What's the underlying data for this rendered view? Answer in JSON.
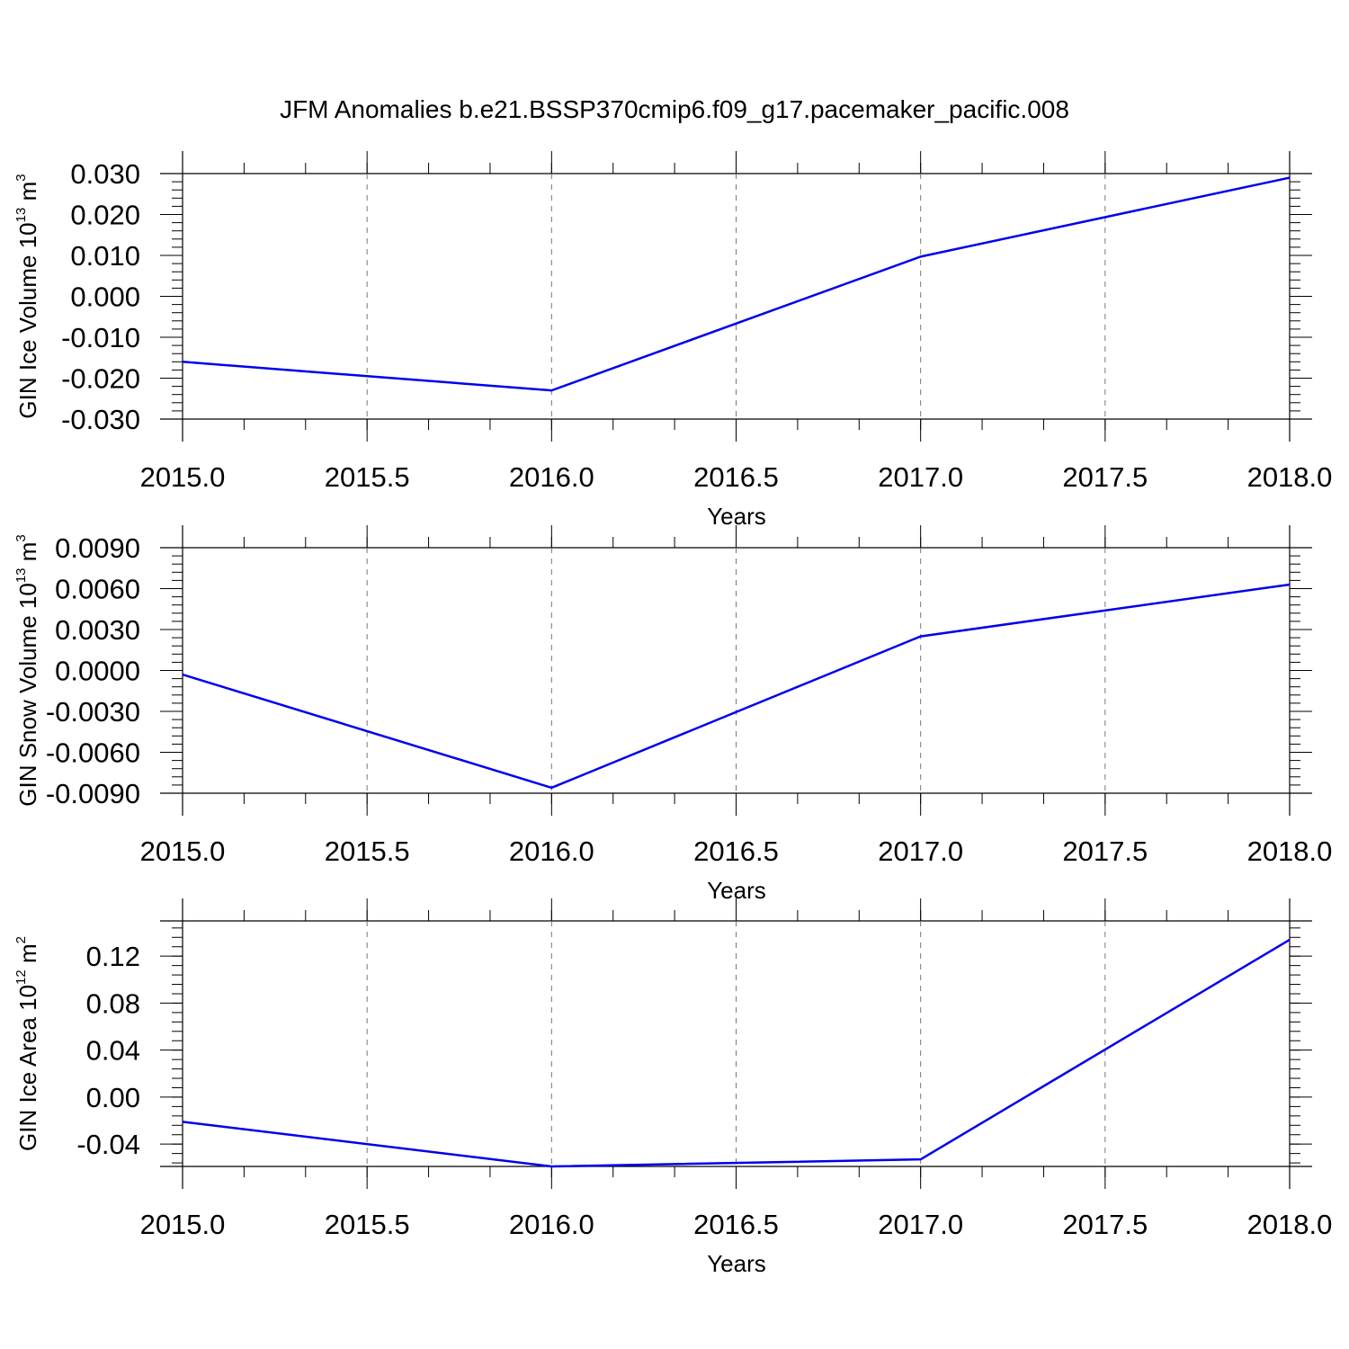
{
  "figure": {
    "title": "JFM Anomalies b.e21.BSSP370cmip6.f09_g17.pacemaker_pacific.008"
  },
  "colors": {
    "series": "#0000ee",
    "axis": "#000000",
    "grid": "#777777"
  },
  "chart_data": [
    {
      "type": "line",
      "xlabel": "Years",
      "ylabel": {
        "base": "GIN Ice Volume 10",
        "exp": "13",
        "unit": " m",
        "unit_exp": "3"
      },
      "x": [
        2015.0,
        2016.0,
        2017.0,
        2018.0
      ],
      "series": [
        {
          "values": [
            -0.016,
            -0.023,
            0.0097,
            0.029
          ]
        }
      ],
      "xlim": [
        2015.0,
        2018.0
      ],
      "ylim": [
        -0.03,
        0.03
      ],
      "xticks": [
        2015.0,
        2015.5,
        2016.0,
        2016.5,
        2017.0,
        2017.5,
        2018.0
      ],
      "xtick_labels": [
        "2015.0",
        "2015.5",
        "2016.0",
        "2016.5",
        "2017.0",
        "2017.5",
        "2018.0"
      ],
      "yticks": [
        -0.03,
        -0.02,
        -0.01,
        0.0,
        0.01,
        0.02,
        0.03
      ],
      "ytick_labels": [
        "-0.030",
        "-0.020",
        "-0.010",
        "0.000",
        "0.010",
        "0.020",
        "0.030"
      ],
      "grid": "vertical dashed"
    },
    {
      "type": "line",
      "xlabel": "Years",
      "ylabel": {
        "base": "GIN Snow Volume 10",
        "exp": "13",
        "unit": " m",
        "unit_exp": "3"
      },
      "x": [
        2015.0,
        2016.0,
        2017.0,
        2018.0
      ],
      "series": [
        {
          "values": [
            -0.0003,
            -0.0086,
            0.0025,
            0.0063
          ]
        }
      ],
      "xlim": [
        2015.0,
        2018.0
      ],
      "ylim": [
        -0.009,
        0.009
      ],
      "xticks": [
        2015.0,
        2015.5,
        2016.0,
        2016.5,
        2017.0,
        2017.5,
        2018.0
      ],
      "xtick_labels": [
        "2015.0",
        "2015.5",
        "2016.0",
        "2016.5",
        "2017.0",
        "2017.5",
        "2018.0"
      ],
      "yticks": [
        -0.009,
        -0.006,
        -0.003,
        0.0,
        0.003,
        0.006,
        0.009
      ],
      "ytick_labels": [
        "-0.0090",
        "-0.0060",
        "-0.0030",
        "0.0000",
        "0.0030",
        "0.0060",
        "0.0090"
      ],
      "grid": "vertical dashed"
    },
    {
      "type": "line",
      "xlabel": "Years",
      "ylabel": {
        "base": "GIN Ice Area 10",
        "exp": "12",
        "unit": " m",
        "unit_exp": "2"
      },
      "x": [
        2015.0,
        2016.0,
        2017.0,
        2018.0
      ],
      "series": [
        {
          "values": [
            -0.021,
            -0.059,
            -0.053,
            0.134
          ]
        }
      ],
      "xlim": [
        2015.0,
        2018.0
      ],
      "ylim": [
        -0.059,
        0.15
      ],
      "xticks": [
        2015.0,
        2015.5,
        2016.0,
        2016.5,
        2017.0,
        2017.5,
        2018.0
      ],
      "xtick_labels": [
        "2015.0",
        "2015.5",
        "2016.0",
        "2016.5",
        "2017.0",
        "2017.5",
        "2018.0"
      ],
      "yticks": [
        -0.04,
        0.0,
        0.04,
        0.08,
        0.12
      ],
      "ytick_labels": [
        "-0.04",
        "0.00",
        "0.04",
        "0.08",
        "0.12"
      ],
      "grid": "vertical dashed"
    }
  ]
}
